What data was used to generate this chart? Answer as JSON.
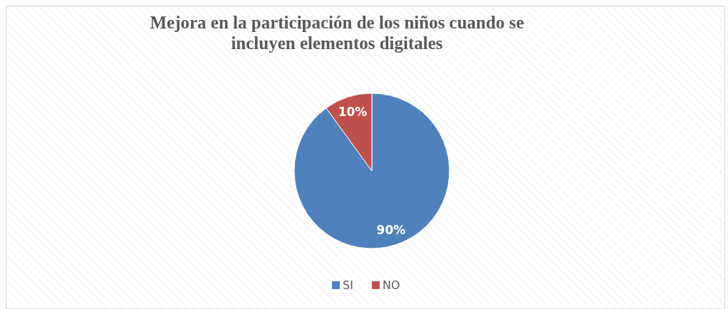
{
  "chart_data": {
    "type": "pie",
    "title": "Mejora en la participación de los niños cuando se incluyen elementos digitales",
    "categories": [
      "SI",
      "NO"
    ],
    "values": [
      90,
      10
    ],
    "colors": [
      "#4f81bd",
      "#c0504d"
    ],
    "value_labels": [
      "90%",
      "10%"
    ],
    "legend": "bottom"
  }
}
